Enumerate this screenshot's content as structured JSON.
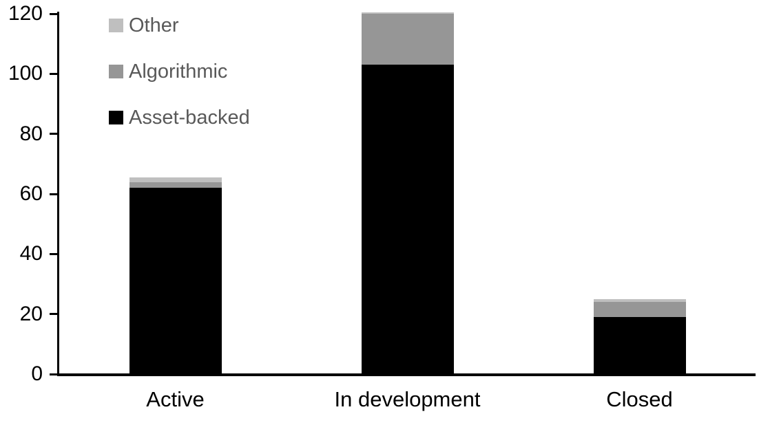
{
  "chart_data": {
    "type": "bar",
    "stacked": true,
    "title": "",
    "xlabel": "",
    "ylabel": "",
    "grid": false,
    "categories": [
      "Active",
      "In development",
      "Closed"
    ],
    "series": [
      {
        "name": "Asset-backed",
        "color": "#000000",
        "values": [
          62,
          103,
          19
        ]
      },
      {
        "name": "Algorithmic",
        "color": "#969696",
        "values": [
          2,
          17,
          5
        ]
      },
      {
        "name": "Other",
        "color": "#bfbfbf",
        "values": [
          1.5,
          0.5,
          1
        ]
      }
    ],
    "totals": [
      65.5,
      120.5,
      25
    ],
    "y_axis": {
      "min": 0,
      "max": 120,
      "tick_interval": 20,
      "ticks": [
        0,
        20,
        40,
        60,
        80,
        100,
        120
      ]
    },
    "legend": {
      "position": "top-left",
      "order_top_to_bottom": [
        "Other",
        "Algorithmic",
        "Asset-backed"
      ]
    },
    "colors": {
      "axis": "#000000",
      "tick_label": "#000000",
      "category_label": "#000000",
      "legend_label": "#595959",
      "background": "#ffffff"
    }
  }
}
